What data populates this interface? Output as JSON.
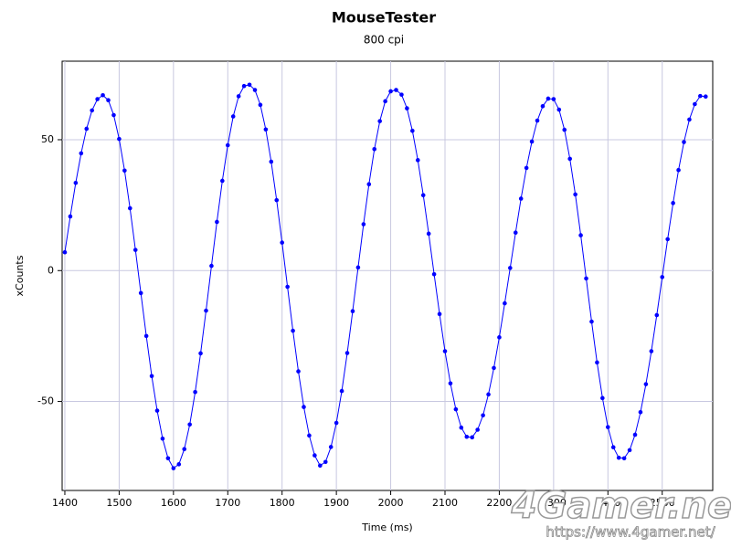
{
  "chart_data": {
    "type": "line",
    "title": "MouseTester",
    "subtitle": "800 cpi",
    "x_label": "Time (ms)",
    "y_label": "xCounts",
    "x": [
      1400,
      1410,
      1420,
      1430,
      1440,
      1450,
      1460,
      1470,
      1480,
      1490,
      1500,
      1510,
      1520,
      1530,
      1540,
      1550,
      1560,
      1570,
      1580,
      1590,
      1600,
      1610,
      1620,
      1630,
      1640,
      1650,
      1660,
      1670,
      1680,
      1690,
      1700,
      1710,
      1720,
      1730,
      1740,
      1750,
      1760,
      1770,
      1780,
      1790,
      1800,
      1810,
      1820,
      1830,
      1840,
      1850,
      1860,
      1870,
      1880,
      1890,
      1900,
      1910,
      1920,
      1930,
      1940,
      1950,
      1960,
      1970,
      1980,
      1990,
      2000,
      2010,
      2020,
      2030,
      2040,
      2050,
      2060,
      2070,
      2080,
      2090,
      2100,
      2110,
      2120,
      2130,
      2140,
      2150,
      2160,
      2170,
      2180,
      2190,
      2200,
      2210,
      2220,
      2230,
      2240,
      2250,
      2260,
      2270,
      2280,
      2290,
      2300,
      2310,
      2320,
      2330,
      2340,
      2350,
      2360,
      2370,
      2380,
      2390,
      2400,
      2410,
      2420,
      2430,
      2440,
      2450,
      2460,
      2470,
      2480,
      2490,
      2500,
      2510,
      2520,
      2530,
      2540,
      2550,
      2560,
      2570,
      2580
    ],
    "series": [
      {
        "color": "#0000ff",
        "values": [
          7,
          20.7,
          33.5,
          44.8,
          54.2,
          61.2,
          65.5,
          67,
          65.1,
          59.4,
          50.3,
          38.2,
          23.8,
          7.9,
          -8.6,
          -25,
          -40.3,
          -53.5,
          -64.2,
          -71.7,
          -75.5,
          -74,
          -68.2,
          -58.8,
          -46.4,
          -31.6,
          -15.3,
          1.8,
          18.6,
          34.3,
          47.9,
          58.9,
          66.6,
          70.5,
          71,
          69,
          63.3,
          53.9,
          41.6,
          26.9,
          10.7,
          -6.2,
          -23,
          -38.5,
          -52.1,
          -63,
          -70.6,
          -74.5,
          -73.1,
          -67.4,
          -58.2,
          -46,
          -31.5,
          -15.5,
          1.2,
          17.7,
          33,
          46.4,
          57.1,
          64.7,
          68.5,
          69,
          67.2,
          62,
          53.4,
          42.2,
          28.8,
          14.1,
          -1.4,
          -16.6,
          -30.8,
          -43.1,
          -53,
          -60,
          -63.5,
          -63.7,
          -60.8,
          -55.3,
          -47.3,
          -37.2,
          -25.5,
          -12.5,
          1,
          14.5,
          27.5,
          39.2,
          49.3,
          57.3,
          62.8,
          65.7,
          65.5,
          61.5,
          53.8,
          42.7,
          29.1,
          13.5,
          -3,
          -19.5,
          -35.1,
          -48.7,
          -59.8,
          -67.5,
          -71.5,
          -71.7,
          -68.6,
          -62.7,
          -54.1,
          -43.4,
          -30.8,
          -17,
          -2.5,
          12,
          25.8,
          38.4,
          49.1,
          57.7,
          63.6,
          66.7,
          66.5
        ]
      }
    ],
    "xlim": [
      1395,
      2593
    ],
    "ylim": [
      -84,
      80
    ],
    "xticks": [
      1400,
      1500,
      1600,
      1700,
      1800,
      1900,
      2000,
      2100,
      2200,
      2300,
      2400,
      2500
    ],
    "yticks": [
      -50,
      0,
      50
    ],
    "grid": true,
    "markers": true,
    "watermark": "4Gamer.net",
    "watermark_url": "https://www.4gamer.net/"
  }
}
